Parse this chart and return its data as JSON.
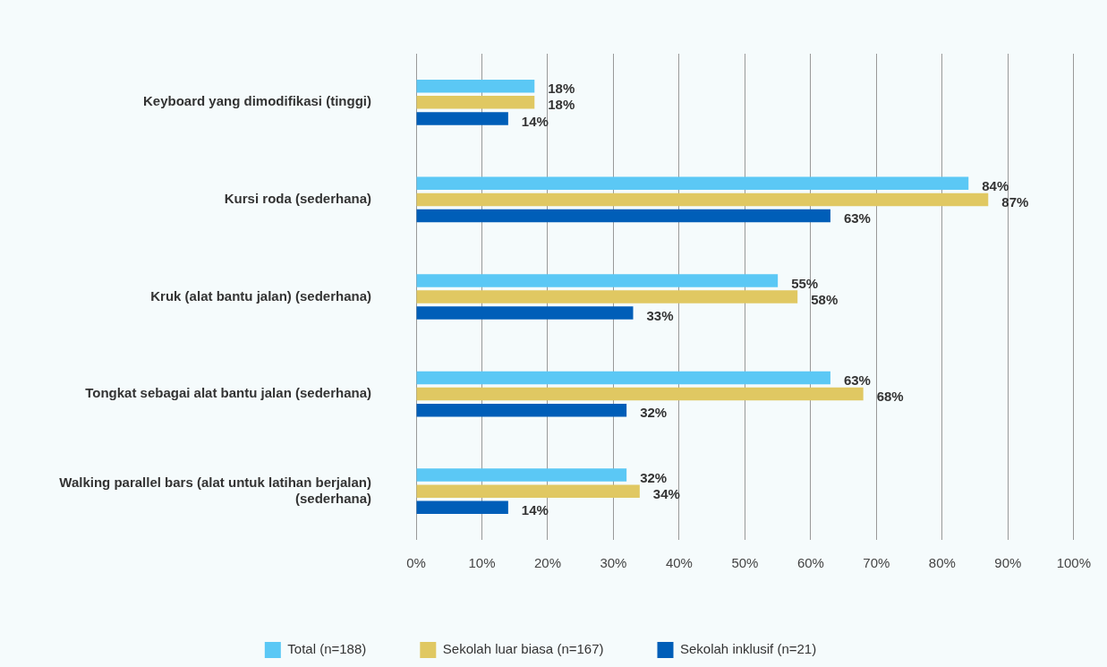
{
  "chart_data": {
    "type": "bar",
    "orientation": "horizontal",
    "categories": [
      "Keyboard yang dimodifikasi (tinggi)",
      "Kursi roda (sederhana)",
      "Kruk (alat bantu jalan) (sederhana)",
      "Tongkat sebagai alat bantu jalan (sederhana)",
      "Walking parallel bars (alat untuk latihan berjalan) (sederhana)"
    ],
    "series": [
      {
        "name": "Total (n=188)",
        "color": "#5bc8f5",
        "values": [
          18,
          84,
          55,
          63,
          32
        ],
        "value_labels": [
          "18%",
          "84%",
          "55%",
          "63%",
          "32%"
        ]
      },
      {
        "name": "Sekolah luar biasa (n=167)",
        "color": "#e0c862",
        "values": [
          18,
          87,
          58,
          68,
          34
        ],
        "value_labels": [
          "18%",
          "87%",
          "58%",
          "68%",
          "34%"
        ]
      },
      {
        "name": "Sekolah inklusif (n=21)",
        "color": "#005eb8",
        "values": [
          14,
          63,
          33,
          32,
          14
        ],
        "value_labels": [
          "14%",
          "63%",
          "33%",
          "32%",
          "14%"
        ]
      }
    ],
    "xlim": [
      0,
      100
    ],
    "xticks": [
      {
        "value": 0,
        "label": "0%"
      },
      {
        "value": 10,
        "label": "10%"
      },
      {
        "value": 20,
        "label": "20%"
      },
      {
        "value": 30,
        "label": "30%"
      },
      {
        "value": 40,
        "label": "40%"
      },
      {
        "value": 50,
        "label": "50%"
      },
      {
        "value": 60,
        "label": "60%"
      },
      {
        "value": 70,
        "label": "70%"
      },
      {
        "value": 80,
        "label": "80%"
      },
      {
        "value": 90,
        "label": "90%"
      },
      {
        "value": 100,
        "label": "100%"
      }
    ],
    "grid": "x",
    "legend": "bottom"
  }
}
